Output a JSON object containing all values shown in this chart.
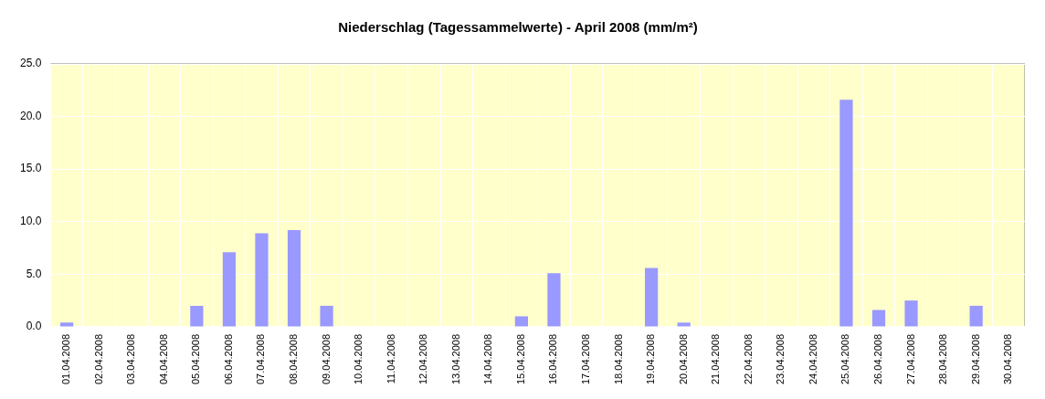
{
  "chart_data": {
    "type": "bar",
    "title": "Niederschlag (Tagessammelwerte) - April 2008 (mm/m²)",
    "categories": [
      "01.04.2008",
      "02.04.2008",
      "03.04.2008",
      "04.04.2008",
      "05.04.2008",
      "06.04.2008",
      "07.04.2008",
      "08.04.2008",
      "09.04.2008",
      "10.04.2008",
      "11.04.2008",
      "12.04.2008",
      "13.04.2008",
      "14.04.2008",
      "15.04.2008",
      "16.04.2008",
      "17.04.2008",
      "18.04.2008",
      "19.04.2008",
      "20.04.2008",
      "21.04.2008",
      "22.04.2008",
      "23.04.2008",
      "24.04.2008",
      "25.04.2008",
      "26.04.2008",
      "27.04.2008",
      "28.04.2008",
      "29.04.2008",
      "30.04.2008"
    ],
    "values": [
      0.4,
      0,
      0,
      0,
      2.0,
      7.1,
      8.9,
      9.2,
      2.0,
      0,
      0,
      0,
      0,
      0,
      1.0,
      5.1,
      0,
      0,
      5.6,
      0.4,
      0,
      0,
      0,
      0,
      21.6,
      1.6,
      2.5,
      0,
      2.0,
      0
    ],
    "color": "#9999ff",
    "ylim": [
      0,
      25
    ],
    "yticks": [
      {
        "value": 0,
        "label": "0.0"
      },
      {
        "value": 5,
        "label": "5.0"
      },
      {
        "value": 10,
        "label": "10.0"
      },
      {
        "value": 15,
        "label": "15.0"
      },
      {
        "value": 20,
        "label": "20.0"
      },
      {
        "value": 25,
        "label": "25.0"
      }
    ],
    "grid": true
  }
}
